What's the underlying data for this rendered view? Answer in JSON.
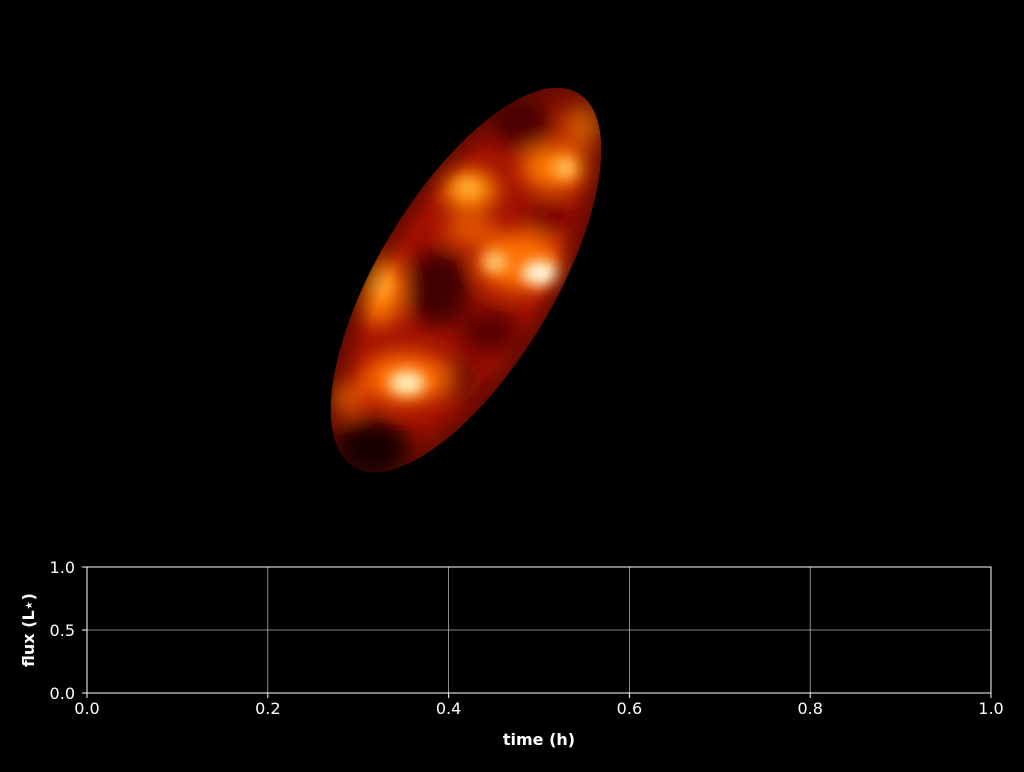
{
  "figure": {
    "background": "#000000",
    "foreground": "#ffffff",
    "grid_color": "#b0b0b0"
  },
  "star_map": {
    "colormap": "hot",
    "description_shape": "inclined-ellipse"
  },
  "chart_data": {
    "type": "line",
    "title": "",
    "xlabel": "time (h)",
    "ylabel": "flux (L⋆)",
    "xlim": [
      0.0,
      1.0
    ],
    "ylim": [
      0.0,
      1.0
    ],
    "xticks": [
      0.0,
      0.2,
      0.4,
      0.6,
      0.8,
      1.0
    ],
    "yticks": [
      0.0,
      0.5,
      1.0
    ],
    "xtick_labels": [
      "0.0",
      "0.2",
      "0.4",
      "0.6",
      "0.8",
      "1.0"
    ],
    "ytick_labels": [
      "0.0",
      "0.5",
      "1.0"
    ],
    "grid": true,
    "series": []
  }
}
